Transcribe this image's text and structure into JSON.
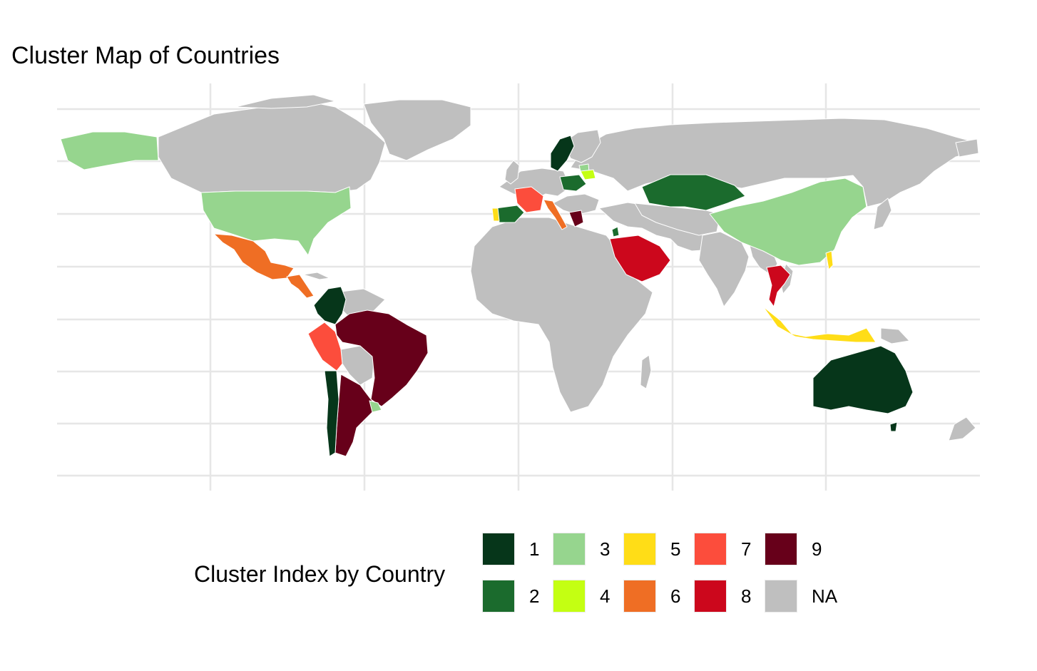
{
  "title": "Cluster Map of Countries",
  "legend": {
    "title": "Cluster Index by Country",
    "entries": [
      {
        "label": "1",
        "color": "#06361a"
      },
      {
        "label": "2",
        "color": "#1b6b2d"
      },
      {
        "label": "3",
        "color": "#96d58e"
      },
      {
        "label": "4",
        "color": "#c4ff12"
      },
      {
        "label": "5",
        "color": "#ffdd17"
      },
      {
        "label": "6",
        "color": "#ef6e24"
      },
      {
        "label": "7",
        "color": "#fc4d3c"
      },
      {
        "label": "8",
        "color": "#cc071c"
      },
      {
        "label": "9",
        "color": "#67001a"
      },
      {
        "label": "NA",
        "color": "#bfbfbf"
      }
    ]
  },
  "map": {
    "background_color": "#ffffff",
    "grid_color": "#e6e6e6",
    "land_na_color": "#bfbfbf",
    "border_color": "#ffffff",
    "country_clusters": [
      {
        "country": "Alaska (USA)",
        "cluster": 3
      },
      {
        "country": "United States",
        "cluster": 3
      },
      {
        "country": "Mexico",
        "cluster": 6
      },
      {
        "country": "Central America",
        "cluster": 6
      },
      {
        "country": "Colombia",
        "cluster": 1
      },
      {
        "country": "Peru",
        "cluster": 7
      },
      {
        "country": "Brazil",
        "cluster": 9
      },
      {
        "country": "Argentina",
        "cluster": 9
      },
      {
        "country": "Chile",
        "cluster": 1
      },
      {
        "country": "Uruguay",
        "cluster": 3
      },
      {
        "country": "France",
        "cluster": 7
      },
      {
        "country": "Spain",
        "cluster": 2
      },
      {
        "country": "Portugal",
        "cluster": 5
      },
      {
        "country": "Italy",
        "cluster": 6
      },
      {
        "country": "Sweden",
        "cluster": 1
      },
      {
        "country": "Poland",
        "cluster": 2
      },
      {
        "country": "Lithuania",
        "cluster": 3
      },
      {
        "country": "Belarus region",
        "cluster": 4
      },
      {
        "country": "Greece",
        "cluster": 9
      },
      {
        "country": "Kazakhstan",
        "cluster": 2
      },
      {
        "country": "Saudi Arabia",
        "cluster": 8
      },
      {
        "country": "Jordan",
        "cluster": 2
      },
      {
        "country": "China",
        "cluster": 3
      },
      {
        "country": "Thailand",
        "cluster": 8
      },
      {
        "country": "Indonesia",
        "cluster": 5
      },
      {
        "country": "Philippines",
        "cluster": 5
      },
      {
        "country": "Australia",
        "cluster": 1
      }
    ]
  }
}
